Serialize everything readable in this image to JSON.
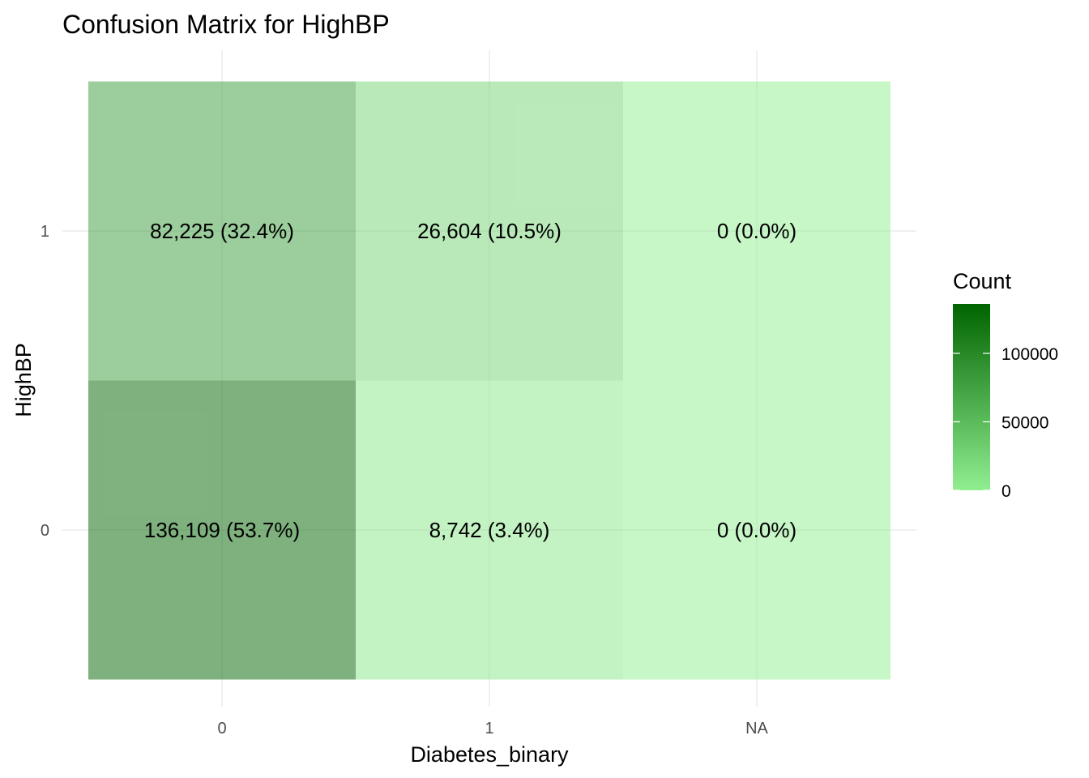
{
  "chart_data": {
    "type": "heatmap",
    "title": "Confusion Matrix for HighBP",
    "xlabel": "Diabetes_binary",
    "ylabel": "HighBP",
    "x_categories": [
      "0",
      "1",
      "NA"
    ],
    "y_categories": [
      "0",
      "1"
    ],
    "cells": [
      {
        "x": "0",
        "y": "1",
        "count": 82225,
        "label": "82,225 (32.4%)"
      },
      {
        "x": "1",
        "y": "1",
        "count": 26604,
        "label": "26,604 (10.5%)"
      },
      {
        "x": "NA",
        "y": "1",
        "count": 0,
        "label": "0 (0.0%)"
      },
      {
        "x": "0",
        "y": "0",
        "count": 136109,
        "label": "136,109 (53.7%)"
      },
      {
        "x": "1",
        "y": "0",
        "count": 8742,
        "label": "8,742 (3.4%)"
      },
      {
        "x": "NA",
        "y": "0",
        "count": 0,
        "label": "0 (0.0%)"
      }
    ],
    "legend": {
      "title": "Count",
      "ticks": [
        "100000",
        "50000",
        "0"
      ],
      "tick_values": [
        100000,
        50000,
        0
      ],
      "min": 0,
      "max": 136109,
      "low_color": "#90ee90",
      "high_color": "#006400",
      "placement": "right"
    },
    "grid": true,
    "tile_alpha": 0.5
  }
}
